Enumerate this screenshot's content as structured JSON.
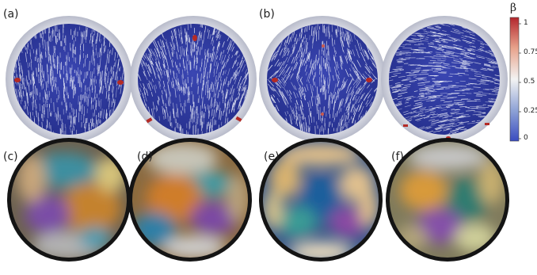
{
  "panels": [
    {
      "label": "(a)",
      "kind": "simulation",
      "defects": "two lateral +1/2 defects"
    },
    {
      "label": "",
      "kind": "simulation",
      "defects": "top and bottom defects"
    },
    {
      "label": "(b)",
      "kind": "simulation",
      "defects": "four defects, bipolar"
    },
    {
      "label": "",
      "kind": "simulation",
      "defects": "boundary defects at bottom"
    },
    {
      "label": "(c)",
      "kind": "polarized-micrograph"
    },
    {
      "label": "(d)",
      "kind": "polarized-micrograph"
    },
    {
      "label": "(e)",
      "kind": "polarized-micrograph"
    },
    {
      "label": "(f)",
      "kind": "polarized-micrograph"
    }
  ],
  "colorbar": {
    "title": "β",
    "ticks": [
      "1",
      "0.75",
      "0.5",
      "0.25",
      "0"
    ],
    "colors": [
      "#b3262d",
      "#e8a48d",
      "#f3f3f3",
      "#8fa3d6",
      "#3a4cc0"
    ]
  },
  "colors": {
    "disk_fill": "#2f3aa0",
    "disk_ring": "#c6c9d6",
    "streak": "#e9ecf6",
    "defect": "#b42a25",
    "micro_bg": "#141414"
  }
}
